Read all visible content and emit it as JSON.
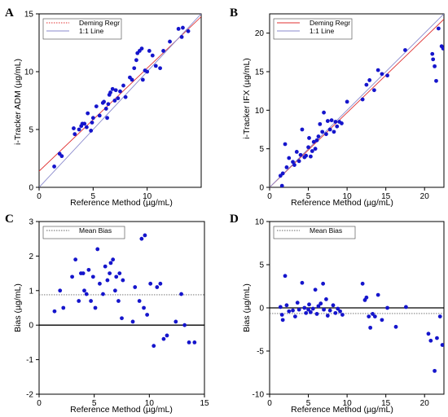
{
  "chart_data": [
    {
      "id": "A",
      "type": "scatter",
      "panel_label": "A",
      "xlabel": "Reference Method (µg/mL)",
      "ylabel": "i-Tracker ADM (µg/mL)",
      "xlim": [
        0,
        15
      ],
      "ylim": [
        0,
        15
      ],
      "xticks": [
        0,
        5,
        10
      ],
      "yticks": [
        0,
        5,
        10,
        15
      ],
      "legend": {
        "placement": "top-left",
        "entries": [
          {
            "label": "Deming Regr",
            "color": "#e03030",
            "dash": "dotted"
          },
          {
            "label": "1:1 Line",
            "color": "#8888cc",
            "dash": "solid"
          }
        ]
      },
      "lines": [
        {
          "name": "Deming Regr",
          "color": "#e03030",
          "x": [
            0,
            15
          ],
          "y": [
            1.4,
            14.75
          ]
        },
        {
          "name": "1:1 Line",
          "color": "#8888cc",
          "x": [
            0,
            15
          ],
          "y": [
            0,
            15
          ]
        }
      ],
      "points": {
        "color": "#1515cc",
        "x": [
          1.4,
          1.9,
          2.1,
          3.2,
          3.3,
          3.7,
          3.9,
          4.0,
          4.2,
          4.4,
          4.5,
          4.8,
          4.9,
          5.0,
          5.3,
          5.6,
          5.9,
          6.0,
          6.2,
          6.3,
          6.4,
          6.5,
          6.6,
          6.8,
          7.0,
          7.1,
          7.3,
          7.5,
          7.8,
          8.0,
          8.4,
          8.6,
          8.8,
          9.0,
          9.1,
          9.3,
          9.5,
          9.6,
          9.8,
          10.0,
          10.2,
          10.5,
          10.8,
          11.2,
          11.5,
          12.1,
          12.9,
          13.2,
          13.3,
          13.8
        ],
        "y": [
          1.8,
          2.9,
          2.7,
          5.1,
          4.6,
          5.0,
          5.3,
          5.5,
          5.5,
          5.2,
          6.4,
          4.9,
          5.6,
          6.0,
          7.0,
          6.2,
          7.3,
          7.4,
          6.8,
          6.0,
          7.2,
          8.0,
          8.2,
          8.5,
          7.5,
          8.4,
          7.7,
          8.3,
          8.8,
          7.8,
          9.5,
          9.3,
          10.3,
          11.0,
          11.6,
          11.8,
          12.0,
          9.3,
          10.1,
          10.0,
          11.8,
          11.4,
          10.5,
          10.3,
          11.8,
          12.6,
          13.7,
          13.0,
          13.8,
          13.5
        ]
      }
    },
    {
      "id": "B",
      "type": "scatter",
      "panel_label": "B",
      "xlabel": "Reference Method (µg/mL)",
      "ylabel": "i-Tracker IFX (µg/mL)",
      "xlim": [
        0,
        22.5
      ],
      "ylim": [
        0,
        22.5
      ],
      "xticks": [
        0,
        5,
        10,
        15,
        20
      ],
      "yticks": [
        0,
        5,
        10,
        15,
        20
      ],
      "legend": {
        "placement": "top-left",
        "entries": [
          {
            "label": "Deming Regr",
            "color": "#e03030",
            "dash": "solid"
          },
          {
            "label": "1:1 Line",
            "color": "#8888cc",
            "dash": "solid"
          }
        ]
      },
      "lines": [
        {
          "name": "Deming Regr",
          "color": "#e03030",
          "x": [
            0,
            22.5
          ],
          "y": [
            0,
            21.8
          ]
        },
        {
          "name": "1:1 Line",
          "color": "#8888cc",
          "x": [
            0,
            22.5
          ],
          "y": [
            0,
            22.5
          ]
        }
      ],
      "points": {
        "color": "#1515cc",
        "x": [
          1.4,
          1.6,
          1.7,
          2.0,
          2.2,
          2.5,
          3.0,
          3.2,
          3.5,
          3.8,
          4.0,
          4.2,
          4.5,
          4.7,
          5.0,
          5.1,
          5.3,
          5.5,
          5.7,
          5.9,
          6.1,
          6.3,
          6.5,
          6.8,
          7.0,
          7.3,
          7.5,
          7.8,
          8.0,
          8.3,
          8.5,
          8.7,
          9.0,
          9.3,
          10.0,
          12.0,
          12.5,
          12.9,
          13.5,
          14.0,
          14.5,
          15.2,
          17.5,
          21.0,
          21.1,
          21.3,
          21.5,
          21.8,
          22.2,
          22.4
        ],
        "y": [
          1.5,
          0.2,
          1.8,
          5.6,
          2.6,
          3.8,
          3.3,
          2.9,
          4.6,
          3.4,
          4.2,
          7.5,
          3.9,
          4.1,
          5.2,
          6.4,
          4.0,
          4.7,
          5.9,
          5.0,
          6.1,
          6.6,
          8.2,
          7.2,
          9.7,
          6.9,
          8.6,
          7.5,
          8.7,
          7.2,
          8.5,
          7.9,
          8.5,
          8.3,
          11.1,
          11.4,
          13.3,
          13.9,
          12.6,
          15.2,
          14.7,
          14.5,
          17.8,
          17.3,
          16.6,
          15.7,
          13.8,
          20.6,
          18.3,
          18.0
        ]
      }
    },
    {
      "id": "C",
      "type": "scatter",
      "panel_label": "C",
      "xlabel": "Reference Method (µg/mL)",
      "ylabel": "Bias (µg/mL)",
      "xlim": [
        0,
        15
      ],
      "ylim": [
        -2,
        3
      ],
      "xticks": [
        0,
        5,
        10,
        15
      ],
      "yticks": [
        -2,
        -1,
        0,
        1,
        2,
        3
      ],
      "mean_bias": 0.88,
      "legend": {
        "placement": "top-left",
        "entries": [
          {
            "label": "Mean Bias",
            "color": "#666666",
            "dash": "dotted"
          }
        ]
      },
      "points": {
        "color": "#1515cc",
        "x": [
          1.4,
          1.9,
          2.2,
          3.0,
          3.3,
          3.6,
          3.8,
          4.0,
          4.1,
          4.3,
          4.5,
          4.7,
          4.9,
          5.1,
          5.3,
          5.5,
          5.8,
          6.0,
          6.2,
          6.4,
          6.5,
          6.7,
          6.9,
          7.0,
          7.2,
          7.3,
          7.5,
          7.6,
          8.5,
          8.7,
          9.1,
          9.3,
          9.5,
          9.6,
          9.8,
          10.1,
          10.4,
          10.7,
          11.0,
          11.3,
          11.6,
          12.4,
          12.9,
          13.2,
          13.6,
          14.1
        ],
        "y": [
          0.4,
          1.0,
          0.5,
          1.4,
          1.9,
          0.7,
          1.5,
          1.5,
          1.0,
          0.9,
          1.6,
          0.7,
          1.4,
          0.5,
          2.2,
          1.2,
          0.9,
          1.7,
          1.3,
          1.5,
          1.8,
          1.9,
          1.0,
          1.4,
          0.7,
          1.5,
          0.2,
          1.3,
          0.1,
          1.1,
          0.7,
          2.5,
          0.5,
          2.6,
          0.3,
          1.2,
          -0.6,
          1.1,
          1.2,
          -0.4,
          -0.3,
          0.1,
          0.9,
          0.0,
          -0.5,
          -0.5
        ]
      }
    },
    {
      "id": "D",
      "type": "scatter",
      "panel_label": "D",
      "xlabel": "Reference Method (µg/mL)",
      "ylabel": "Bias (µg/mL)",
      "xlim": [
        0,
        22.5
      ],
      "ylim": [
        -10,
        10
      ],
      "xticks": [
        0,
        5,
        10,
        15,
        20
      ],
      "yticks": [
        -10,
        -5,
        0,
        5,
        10
      ],
      "mean_bias": -0.65,
      "legend": {
        "placement": "top-left",
        "entries": [
          {
            "label": "Mean Bias",
            "color": "#666666",
            "dash": "dotted"
          }
        ]
      },
      "points": {
        "color": "#1515cc",
        "x": [
          1.4,
          1.6,
          1.7,
          2.0,
          2.2,
          2.5,
          3.0,
          3.3,
          3.6,
          3.8,
          4.2,
          4.5,
          4.7,
          5.0,
          5.1,
          5.3,
          5.6,
          5.9,
          6.1,
          6.3,
          6.6,
          6.9,
          7.0,
          7.3,
          7.5,
          7.8,
          8.2,
          8.5,
          8.8,
          9.1,
          9.4,
          12.0,
          12.3,
          12.5,
          12.8,
          13.0,
          13.3,
          13.6,
          14.0,
          14.5,
          15.2,
          16.3,
          17.6,
          20.5,
          20.8,
          21.3,
          21.6,
          22.0,
          22.3
        ],
        "y": [
          0.1,
          -0.8,
          -1.4,
          3.7,
          0.3,
          -0.4,
          -0.3,
          -1.0,
          0.6,
          -0.2,
          2.9,
          0.0,
          -0.6,
          -0.2,
          0.4,
          -0.5,
          -0.1,
          2.1,
          -0.7,
          0.2,
          0.5,
          2.8,
          -0.2,
          1.0,
          -0.9,
          -0.3,
          0.3,
          -0.6,
          -0.1,
          -0.4,
          -0.8,
          2.8,
          0.9,
          1.2,
          -1.0,
          -2.3,
          -0.7,
          -1.0,
          1.5,
          -1.4,
          0.0,
          -2.2,
          0.1,
          -3.0,
          -3.8,
          -7.3,
          -3.5,
          -1.0,
          -4.3
        ]
      }
    }
  ]
}
